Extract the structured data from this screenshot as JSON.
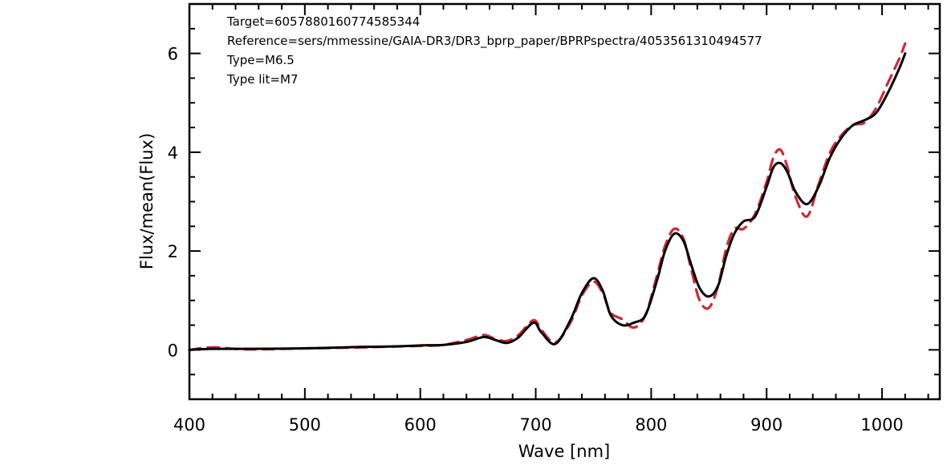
{
  "chart_data": {
    "type": "line",
    "xlabel": "Wave [nm]",
    "ylabel": "Flux/mean(Flux)",
    "xlim": [
      400,
      1050
    ],
    "ylim": [
      -1,
      7
    ],
    "xticks": [
      400,
      500,
      600,
      700,
      800,
      900,
      1000
    ],
    "yticks": [
      0,
      2,
      4,
      6
    ],
    "grid": false,
    "annotations": [
      "Target=6057880160774585344",
      "Reference=sers/mmessine/GAIA-DR3/DR3_bprp_paper/BPRPspectra/4053561310494577",
      "Type=M6.5",
      "Type lit=M7"
    ],
    "series": [
      {
        "color": "#000000",
        "style": "solid",
        "x": [
          400,
          420,
          450,
          500,
          550,
          580,
          600,
          620,
          640,
          655,
          665,
          675,
          685,
          698,
          705,
          717,
          730,
          740,
          750,
          758,
          765,
          775,
          785,
          795,
          805,
          812,
          820,
          828,
          835,
          842,
          850,
          858,
          865,
          872,
          880,
          890,
          900,
          906,
          912,
          918,
          925,
          935,
          945,
          955,
          965,
          975,
          985,
          995,
          1005,
          1015,
          1020
        ],
        "y": [
          0.0,
          0.02,
          0.02,
          0.03,
          0.06,
          0.07,
          0.09,
          0.1,
          0.16,
          0.26,
          0.2,
          0.14,
          0.25,
          0.55,
          0.35,
          0.12,
          0.6,
          1.15,
          1.45,
          1.2,
          0.7,
          0.5,
          0.55,
          0.7,
          1.4,
          2.0,
          2.35,
          2.2,
          1.7,
          1.25,
          1.08,
          1.3,
          1.9,
          2.35,
          2.6,
          2.7,
          3.3,
          3.7,
          3.78,
          3.6,
          3.2,
          2.95,
          3.3,
          3.9,
          4.3,
          4.55,
          4.65,
          4.8,
          5.2,
          5.7,
          6.0
        ]
      },
      {
        "color": "#cc2a36",
        "style": "dashed",
        "x": [
          400,
          420,
          450,
          500,
          550,
          580,
          600,
          620,
          640,
          655,
          665,
          675,
          685,
          698,
          705,
          717,
          730,
          740,
          750,
          758,
          765,
          775,
          785,
          795,
          805,
          812,
          820,
          828,
          835,
          842,
          850,
          858,
          865,
          872,
          880,
          890,
          900,
          906,
          912,
          918,
          925,
          935,
          945,
          955,
          965,
          975,
          985,
          995,
          1005,
          1015,
          1020
        ],
        "y": [
          0.0,
          0.05,
          0.01,
          0.03,
          0.05,
          0.07,
          0.08,
          0.1,
          0.2,
          0.3,
          0.22,
          0.18,
          0.3,
          0.6,
          0.4,
          0.15,
          0.55,
          1.1,
          1.38,
          1.15,
          0.75,
          0.62,
          0.45,
          0.7,
          1.5,
          2.1,
          2.45,
          2.25,
          1.6,
          1.0,
          0.85,
          1.3,
          2.05,
          2.45,
          2.45,
          2.75,
          3.4,
          3.9,
          4.05,
          3.7,
          3.1,
          2.7,
          3.35,
          4.0,
          4.35,
          4.55,
          4.6,
          4.9,
          5.4,
          5.9,
          6.2
        ]
      }
    ]
  }
}
